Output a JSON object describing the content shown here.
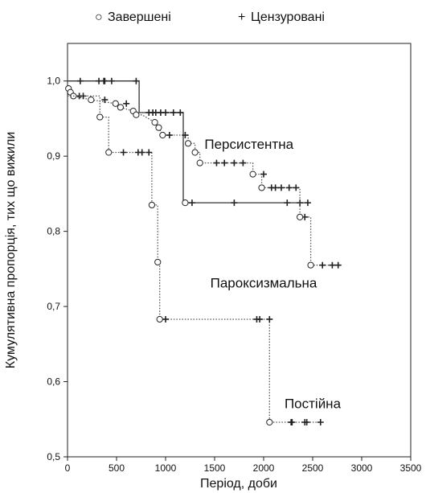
{
  "chart_data": {
    "type": "line",
    "subtype": "kaplan-meier",
    "xlabel": "Період, доби",
    "ylabel": "Кумулятивна пропорція, тих що вижили",
    "xlim": [
      0,
      3500
    ],
    "ylim": [
      0.5,
      1.05
    ],
    "xticks": [
      {
        "value": 0,
        "label": "0"
      },
      {
        "value": 500,
        "label": "500"
      },
      {
        "value": 1000,
        "label": "1000"
      },
      {
        "value": 1500,
        "label": "1500"
      },
      {
        "value": 2000,
        "label": "2000"
      },
      {
        "value": 2500,
        "label": "2500"
      },
      {
        "value": 3000,
        "label": "3000"
      },
      {
        "value": 3500,
        "label": "3500"
      }
    ],
    "yticks": [
      {
        "value": 0.5,
        "label": "0,5"
      },
      {
        "value": 0.6,
        "label": "0,6"
      },
      {
        "value": 0.7,
        "label": "0,7"
      },
      {
        "value": 0.8,
        "label": "0,8"
      },
      {
        "value": 0.9,
        "label": "0,9"
      },
      {
        "value": 1.0,
        "label": "1,0"
      }
    ],
    "legend": {
      "placement": "top",
      "completed": {
        "symbol": "○",
        "label": "Завершені"
      },
      "censored": {
        "symbol": "+",
        "label": "Цензуровані"
      }
    },
    "series": [
      {
        "name": "Персистентна",
        "label_at": [
          1850,
          0.91
        ],
        "line_style": "solid",
        "color": "#333333",
        "steps": [
          [
            0,
            1.0
          ],
          [
            730,
            1.0
          ],
          [
            730,
            0.958
          ],
          [
            1180,
            0.958
          ],
          [
            1180,
            0.838
          ],
          [
            2480,
            0.838
          ]
        ],
        "events": [
          [
            1200,
            0.838
          ]
        ],
        "censored": [
          [
            130,
            1.0
          ],
          [
            320,
            1.0
          ],
          [
            370,
            1.0
          ],
          [
            380,
            1.0
          ],
          [
            450,
            1.0
          ],
          [
            700,
            1.0
          ],
          [
            830,
            0.958
          ],
          [
            870,
            0.958
          ],
          [
            900,
            0.958
          ],
          [
            950,
            0.958
          ],
          [
            1000,
            0.958
          ],
          [
            1080,
            0.958
          ],
          [
            1150,
            0.958
          ],
          [
            1270,
            0.838
          ],
          [
            1700,
            0.838
          ],
          [
            2240,
            0.838
          ],
          [
            2370,
            0.838
          ],
          [
            2450,
            0.838
          ]
        ]
      },
      {
        "name": "Пароксизмальна",
        "label_at": [
          2000,
          0.725
        ],
        "line_style": "dotted",
        "color": "#555555",
        "steps": [
          [
            0,
            0.995
          ],
          [
            10,
            0.99
          ],
          [
            30,
            0.985
          ],
          [
            60,
            0.98
          ],
          [
            240,
            0.975
          ],
          [
            490,
            0.97
          ],
          [
            540,
            0.965
          ],
          [
            670,
            0.96
          ],
          [
            700,
            0.955
          ],
          [
            760,
            0.955
          ],
          [
            890,
            0.945
          ],
          [
            930,
            0.938
          ],
          [
            970,
            0.928
          ],
          [
            1230,
            0.928
          ],
          [
            1230,
            0.917
          ],
          [
            1300,
            0.917
          ],
          [
            1300,
            0.905
          ],
          [
            1350,
            0.905
          ],
          [
            1350,
            0.891
          ],
          [
            1890,
            0.891
          ],
          [
            1890,
            0.876
          ],
          [
            1980,
            0.876
          ],
          [
            1980,
            0.858
          ],
          [
            2370,
            0.858
          ],
          [
            2370,
            0.819
          ],
          [
            2480,
            0.819
          ],
          [
            2480,
            0.755
          ],
          [
            2780,
            0.755
          ]
        ],
        "events": [
          [
            10,
            0.99
          ],
          [
            30,
            0.985
          ],
          [
            60,
            0.98
          ],
          [
            240,
            0.975
          ],
          [
            490,
            0.97
          ],
          [
            540,
            0.965
          ],
          [
            670,
            0.96
          ],
          [
            700,
            0.955
          ],
          [
            890,
            0.945
          ],
          [
            930,
            0.938
          ],
          [
            970,
            0.928
          ],
          [
            1230,
            0.917
          ],
          [
            1300,
            0.905
          ],
          [
            1350,
            0.891
          ],
          [
            1890,
            0.876
          ],
          [
            1980,
            0.858
          ],
          [
            2370,
            0.819
          ],
          [
            2480,
            0.755
          ]
        ],
        "censored": [
          [
            120,
            0.98
          ],
          [
            160,
            0.98
          ],
          [
            380,
            0.975
          ],
          [
            600,
            0.97
          ],
          [
            1040,
            0.928
          ],
          [
            1200,
            0.928
          ],
          [
            1520,
            0.891
          ],
          [
            1600,
            0.891
          ],
          [
            1700,
            0.891
          ],
          [
            1790,
            0.891
          ],
          [
            2000,
            0.876
          ],
          [
            2080,
            0.858
          ],
          [
            2120,
            0.858
          ],
          [
            2180,
            0.858
          ],
          [
            2260,
            0.858
          ],
          [
            2330,
            0.858
          ],
          [
            2420,
            0.819
          ],
          [
            2600,
            0.755
          ],
          [
            2700,
            0.755
          ],
          [
            2760,
            0.755
          ]
        ]
      },
      {
        "name": "Постійна",
        "label_at": [
          2500,
          0.565
        ],
        "line_style": "dotted",
        "color": "#555555",
        "steps": [
          [
            0,
            0.98
          ],
          [
            330,
            0.98
          ],
          [
            330,
            0.952
          ],
          [
            420,
            0.952
          ],
          [
            420,
            0.905
          ],
          [
            860,
            0.905
          ],
          [
            860,
            0.835
          ],
          [
            920,
            0.835
          ],
          [
            920,
            0.759
          ],
          [
            940,
            0.759
          ],
          [
            940,
            0.683
          ],
          [
            2060,
            0.683
          ],
          [
            2060,
            0.546
          ],
          [
            2580,
            0.546
          ]
        ],
        "events": [
          [
            330,
            0.952
          ],
          [
            420,
            0.905
          ],
          [
            860,
            0.835
          ],
          [
            920,
            0.759
          ],
          [
            940,
            0.683
          ],
          [
            2060,
            0.546
          ]
        ],
        "censored": [
          [
            570,
            0.905
          ],
          [
            720,
            0.905
          ],
          [
            760,
            0.905
          ],
          [
            830,
            0.905
          ],
          [
            1000,
            0.683
          ],
          [
            1930,
            0.683
          ],
          [
            1960,
            0.683
          ],
          [
            2060,
            0.683
          ],
          [
            2280,
            0.546
          ],
          [
            2290,
            0.546
          ],
          [
            2420,
            0.546
          ],
          [
            2440,
            0.546
          ],
          [
            2580,
            0.546
          ]
        ]
      }
    ]
  }
}
